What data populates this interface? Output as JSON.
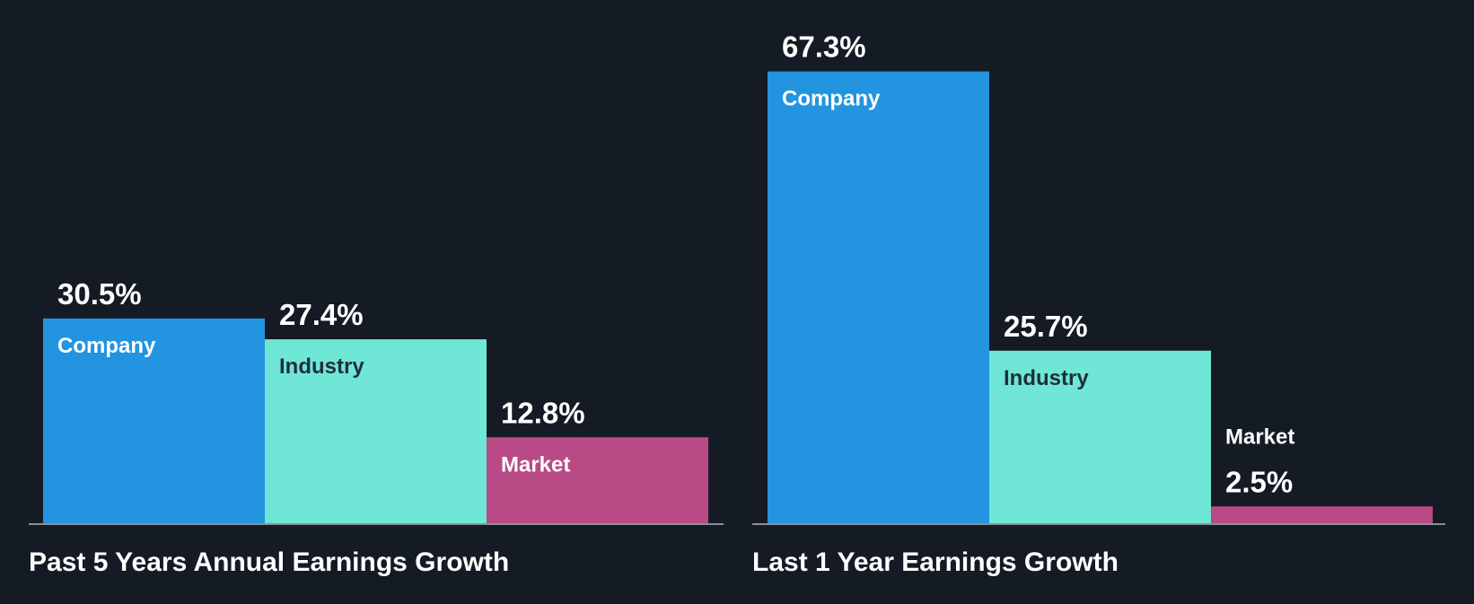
{
  "colors": {
    "background": "#151b24",
    "company": "#2394df",
    "industry": "#6fe6d6",
    "market": "#ba4a86",
    "axis": "#8a9099",
    "value_text": "#ffffff",
    "caption_text": "#ffffff",
    "label_on_company": "#ffffff",
    "label_on_industry": "#1f2f3a",
    "label_on_market": "#ffffff",
    "label_outside": "#ffffff"
  },
  "chart_data": [
    {
      "type": "bar",
      "title": "Past 5 Years Annual Earnings Growth",
      "categories": [
        "Company",
        "Industry",
        "Market"
      ],
      "values": [
        30.5,
        27.4,
        12.8
      ],
      "value_labels": [
        "30.5%",
        "27.4%",
        "12.8%"
      ],
      "ylim": [
        0,
        70
      ],
      "unit": "%"
    },
    {
      "type": "bar",
      "title": "Last 1 Year Earnings Growth",
      "categories": [
        "Company",
        "Industry",
        "Market"
      ],
      "values": [
        67.3,
        25.7,
        2.5
      ],
      "value_labels": [
        "67.3%",
        "25.7%",
        "2.5%"
      ],
      "ylim": [
        0,
        70
      ],
      "unit": "%"
    }
  ]
}
